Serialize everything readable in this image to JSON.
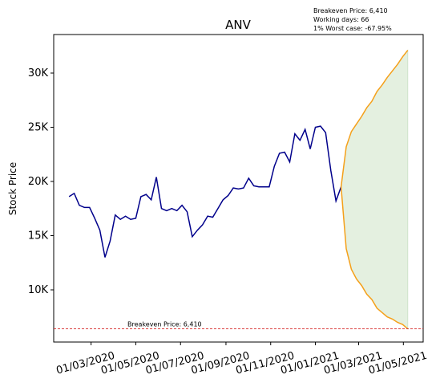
{
  "chart_data": {
    "type": "line",
    "title": "ANV",
    "ylabel": "Stock Price",
    "x": [
      "2020-01-31",
      "2020-02-07",
      "2020-02-14",
      "2020-02-21",
      "2020-02-28",
      "2020-03-06",
      "2020-03-13",
      "2020-03-20",
      "2020-03-27",
      "2020-04-03",
      "2020-04-10",
      "2020-04-17",
      "2020-04-24",
      "2020-05-01",
      "2020-05-08",
      "2020-05-15",
      "2020-05-22",
      "2020-05-29",
      "2020-06-05",
      "2020-06-12",
      "2020-06-19",
      "2020-06-26",
      "2020-07-03",
      "2020-07-10",
      "2020-07-17",
      "2020-07-24",
      "2020-07-31",
      "2020-08-07",
      "2020-08-14",
      "2020-08-21",
      "2020-08-28",
      "2020-09-04",
      "2020-09-11",
      "2020-09-18",
      "2020-09-25",
      "2020-10-02",
      "2020-10-09",
      "2020-10-16",
      "2020-10-23",
      "2020-10-30",
      "2020-11-06",
      "2020-11-13",
      "2020-11-20",
      "2020-11-27",
      "2020-12-04",
      "2020-12-11",
      "2020-12-18",
      "2020-12-25",
      "2021-01-01",
      "2021-01-08",
      "2021-01-15",
      "2021-01-22",
      "2021-01-29",
      "2021-02-05"
    ],
    "series": [
      {
        "color": "#00008b",
        "values": [
          18600,
          18900,
          17800,
          17600,
          17600,
          16600,
          15500,
          13000,
          14500,
          16900,
          16500,
          16800,
          16500,
          16600,
          18600,
          18800,
          18300,
          20400,
          17500,
          17300,
          17500,
          17300,
          17800,
          17200,
          14900,
          15500,
          16000,
          16800,
          16700,
          17500,
          18300,
          18700,
          19400,
          19300,
          19400,
          20300,
          19600,
          19500,
          19500,
          19500,
          21400,
          22600,
          22700,
          21800,
          24400,
          23800,
          24800,
          23000,
          25000,
          25100,
          24500,
          21000,
          18200,
          19500
        ]
      }
    ],
    "forecast": {
      "x": [
        "2021-02-05",
        "2021-02-12",
        "2021-02-19",
        "2021-02-26",
        "2021-03-05",
        "2021-03-12",
        "2021-03-19",
        "2021-03-26",
        "2021-04-02",
        "2021-04-09",
        "2021-04-16",
        "2021-04-23",
        "2021-04-30",
        "2021-05-07"
      ],
      "upper": [
        19500,
        23200,
        24600,
        25300,
        26000,
        26800,
        27400,
        28300,
        28900,
        29600,
        30200,
        30800,
        31500,
        32100
      ],
      "lower": [
        19500,
        13800,
        11900,
        11000,
        10400,
        9600,
        9100,
        8300,
        7900,
        7500,
        7300,
        7000,
        6800,
        6400
      ],
      "color": "#f5a01a",
      "fill": "#e4f0e0"
    },
    "breakeven": {
      "value": 6410,
      "label": "Breakeven Price: 6,410",
      "color": "#d62728"
    },
    "annotations": [
      "Breakeven Price: 6,410",
      "Working days: 66",
      "1% Worst case: -67.95%"
    ],
    "xlim": [
      "2020-01-10",
      "2021-05-28"
    ],
    "xticks": [
      {
        "value": "2020-03-01",
        "label": "01/03/2020"
      },
      {
        "value": "2020-05-01",
        "label": "01/05/2020"
      },
      {
        "value": "2020-07-01",
        "label": "01/07/2020"
      },
      {
        "value": "2020-09-01",
        "label": "01/09/2020"
      },
      {
        "value": "2020-11-01",
        "label": "01/11/2020"
      },
      {
        "value": "2021-01-01",
        "label": "01/01/2021"
      },
      {
        "value": "2021-03-01",
        "label": "01/03/2021"
      },
      {
        "value": "2021-05-01",
        "label": "01/05/2021"
      }
    ],
    "ylim": [
      5185,
      33555
    ],
    "yticks": [
      {
        "value": 10000,
        "label": "10K"
      },
      {
        "value": 15000,
        "label": "15K"
      },
      {
        "value": 20000,
        "label": "20K"
      },
      {
        "value": 25000,
        "label": "25K"
      },
      {
        "value": 30000,
        "label": "30K"
      }
    ]
  }
}
